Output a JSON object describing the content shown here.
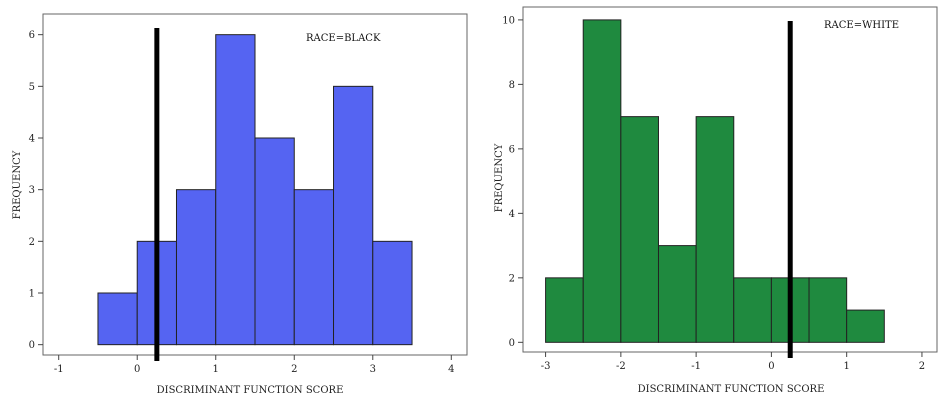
{
  "chart_data": [
    {
      "type": "bar",
      "annotation": "RACE=BLACK",
      "xlabel": "DISCRIMINANT FUNCTION SCORE",
      "ylabel": "FREQUENCY",
      "bin_width": 0.5,
      "bin_starts": [
        -0.5,
        0.0,
        0.5,
        1.0,
        1.5,
        2.0,
        2.5,
        3.0
      ],
      "values": [
        1,
        2,
        3,
        6,
        4,
        3,
        5,
        2
      ],
      "xlim": [
        -1.2,
        4.2
      ],
      "ylim": [
        -0.2,
        6.4
      ],
      "xticks": [
        -1,
        0,
        1,
        2,
        3,
        4
      ],
      "yticks": [
        0,
        1,
        2,
        3,
        4,
        5,
        6
      ],
      "cutoff": 0.25,
      "bar_color": "#5564f2",
      "grid": false
    },
    {
      "type": "bar",
      "annotation": "RACE=WHITE",
      "xlabel": "DISCRIMINANT FUNCTION SCORE",
      "ylabel": "FREQUENCY",
      "bin_width": 0.5,
      "bin_starts": [
        -3.0,
        -2.5,
        -2.0,
        -1.5,
        -1.0,
        -0.5,
        0.0,
        0.5,
        1.0
      ],
      "values": [
        2,
        10,
        7,
        3,
        7,
        2,
        2,
        2,
        1
      ],
      "xlim": [
        -3.3,
        2.2
      ],
      "ylim": [
        -0.3,
        10.4
      ],
      "xticks": [
        -3,
        -2,
        -1,
        0,
        1,
        2
      ],
      "yticks": [
        0,
        2,
        4,
        6,
        8,
        10
      ],
      "cutoff": 0.25,
      "bar_color": "#1f8a3f",
      "grid": false
    }
  ]
}
